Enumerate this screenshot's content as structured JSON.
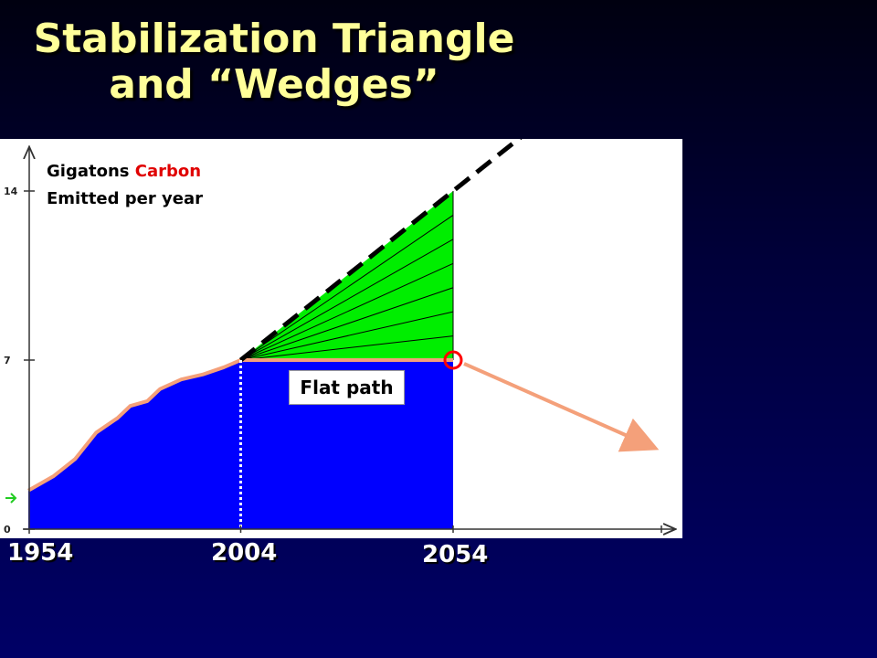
{
  "title": {
    "line1": "Stabilization Triangle",
    "line2": "and “Wedges”"
  },
  "chart_data": {
    "type": "area",
    "title": "Stabilization Triangle and “Wedges”",
    "ylabel_line1_prefix": "Gigatons ",
    "ylabel_line1_highlight": "Carbon",
    "ylabel_line2": "Emitted per year",
    "ytick_labels": [
      "0",
      "7",
      "14"
    ],
    "xtick_labels": [
      "1954",
      "2004",
      "2054"
    ],
    "ylim": [
      0,
      14
    ],
    "xlim": [
      1954,
      2054
    ],
    "historical": {
      "x": [
        1954,
        1960,
        1965,
        1970,
        1975,
        1978,
        1982,
        1985,
        1990,
        1995,
        2000,
        2004
      ],
      "y": [
        1.6,
        2.2,
        2.9,
        4.0,
        4.6,
        5.1,
        5.3,
        5.8,
        6.2,
        6.4,
        6.7,
        7.0
      ]
    },
    "business_as_usual": {
      "x": [
        2004,
        2054
      ],
      "y": [
        7,
        14
      ]
    },
    "flat_path": {
      "x": [
        2004,
        2054
      ],
      "y": [
        7,
        7
      ],
      "label": "Flat path"
    },
    "wedge_count": 7,
    "colors": {
      "historical_fill": "#0000ff",
      "wedges_fill": "#00ee00",
      "flat_line": "#f4a07a",
      "highlight": "#ff0000"
    }
  }
}
